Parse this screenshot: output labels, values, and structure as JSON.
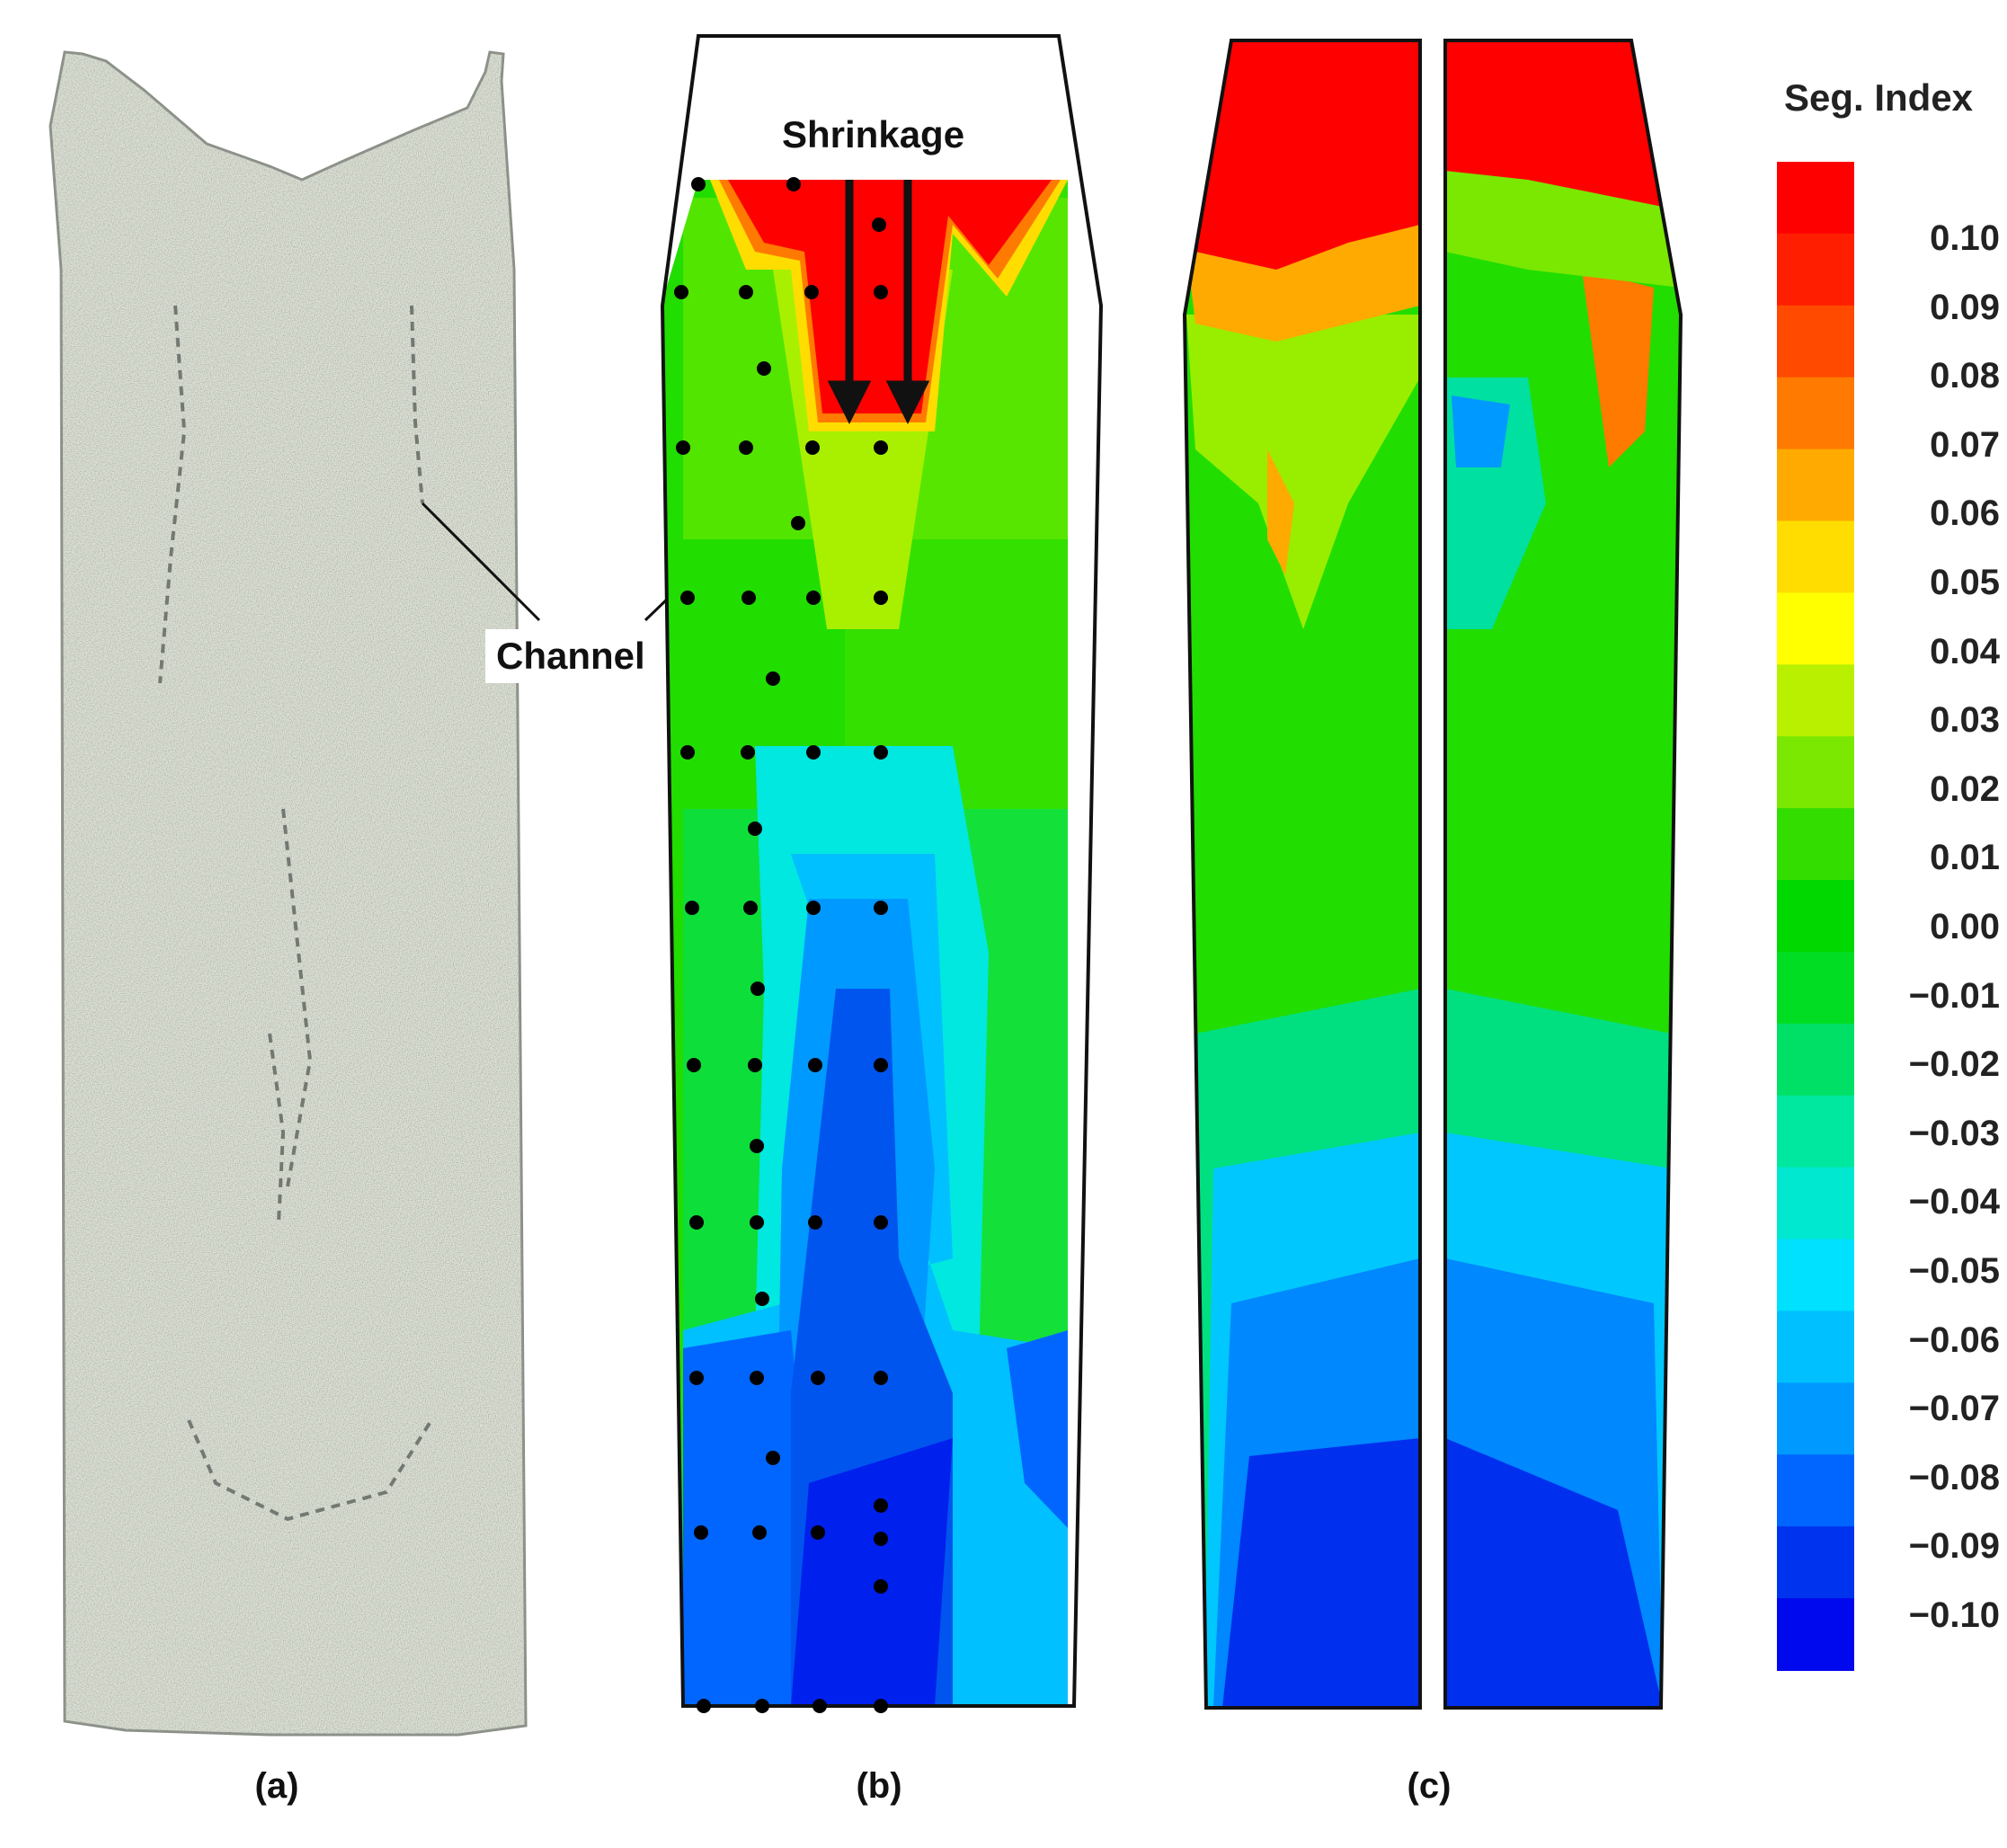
{
  "labels": {
    "channel": "Channel",
    "shrinkage": "Shrinkage",
    "panel_a": "(a)",
    "panel_b": "(b)",
    "panel_c": "(c)"
  },
  "colorbar": {
    "title": "Seg. Index",
    "ticks": [
      "0.10",
      "0.09",
      "0.08",
      "0.07",
      "0.06",
      "0.05",
      "0.04",
      "0.03",
      "0.02",
      "0.01",
      "0.00",
      "−0.01",
      "−0.02",
      "−0.03",
      "−0.04",
      "−0.05",
      "−0.06",
      "−0.07",
      "−0.08",
      "−0.09",
      "−0.10"
    ],
    "colors": [
      "#ff0000",
      "#ff1f00",
      "#ff4a00",
      "#ff7a00",
      "#ffaa00",
      "#ffdd00",
      "#ffff00",
      "#b8f000",
      "#7ae800",
      "#33dd00",
      "#00d800",
      "#00dd22",
      "#00e066",
      "#00e8a0",
      "#00e8d0",
      "#00e0ff",
      "#00c0ff",
      "#0099ff",
      "#0066ff",
      "#0033ee",
      "#0008ee"
    ]
  }
}
